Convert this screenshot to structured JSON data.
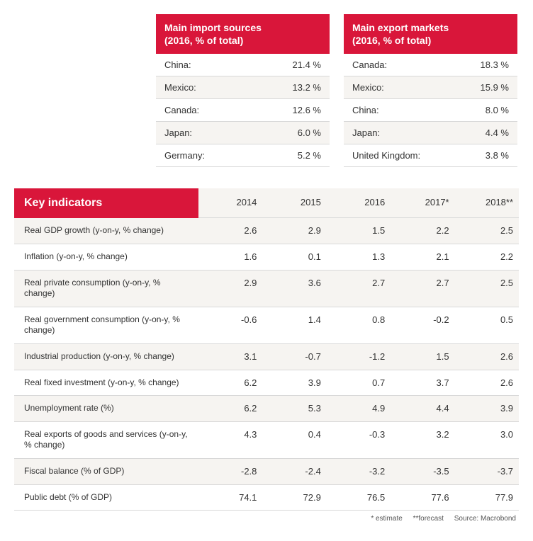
{
  "imports": {
    "title": "Main import sources",
    "subtitle": "(2016, % of total)",
    "rows": [
      {
        "label": "China:",
        "value": "21.4 %"
      },
      {
        "label": "Mexico:",
        "value": "13.2 %"
      },
      {
        "label": "Canada:",
        "value": "12.6 %"
      },
      {
        "label": "Japan:",
        "value": "6.0 %"
      },
      {
        "label": "Germany:",
        "value": "5.2 %"
      }
    ]
  },
  "exports": {
    "title": "Main export markets",
    "subtitle": "(2016, % of total)",
    "rows": [
      {
        "label": "Canada:",
        "value": "18.3 %"
      },
      {
        "label": "Mexico:",
        "value": "15.9 %"
      },
      {
        "label": "China:",
        "value": "8.0 %"
      },
      {
        "label": "Japan:",
        "value": "4.4 %"
      },
      {
        "label": "United Kingdom:",
        "value": "3.8 %"
      }
    ]
  },
  "key_indicators": {
    "title": "Key indicators",
    "years": [
      "2014",
      "2015",
      "2016",
      "2017*",
      "2018**"
    ],
    "rows": [
      {
        "label": "Real GDP growth (y-on-y, % change)",
        "values": [
          "2.6",
          "2.9",
          "1.5",
          "2.2",
          "2.5"
        ]
      },
      {
        "label": "Inflation (y-on-y, % change)",
        "values": [
          "1.6",
          "0.1",
          "1.3",
          "2.1",
          "2.2"
        ]
      },
      {
        "label": "Real private consumption\n(y-on-y, % change)",
        "values": [
          "2.9",
          "3.6",
          "2.7",
          "2.7",
          "2.5"
        ]
      },
      {
        "label": "Real government consumption\n(y-on-y, % change)",
        "values": [
          "-0.6",
          "1.4",
          "0.8",
          "-0.2",
          "0.5"
        ]
      },
      {
        "label": "Industrial production (y-on-y, % change)",
        "values": [
          "3.1",
          "-0.7",
          "-1.2",
          "1.5",
          "2.6"
        ]
      },
      {
        "label": "Real fixed investment (y-on-y, % change)",
        "values": [
          "6.2",
          "3.9",
          "0.7",
          "3.7",
          "2.6"
        ]
      },
      {
        "label": "Unemployment rate (%)",
        "values": [
          "6.2",
          "5.3",
          "4.9",
          "4.4",
          "3.9"
        ]
      },
      {
        "label": "Real exports of goods and services\n(y-on-y, % change)",
        "values": [
          "4.3",
          "0.4",
          "-0.3",
          "3.2",
          "3.0"
        ]
      },
      {
        "label": "Fiscal balance (% of GDP)",
        "values": [
          "-2.8",
          "-2.4",
          "-3.2",
          "-3.5",
          "-3.7"
        ]
      },
      {
        "label": "Public debt (% of GDP)",
        "values": [
          "74.1",
          "72.9",
          "76.5",
          "77.6",
          "77.9"
        ]
      }
    ]
  },
  "footnote": {
    "estimate": "* estimate",
    "forecast": "**forecast",
    "source": "Source: Macrobond"
  },
  "colors": {
    "header_bg": "#d9163a",
    "header_text": "#ffffff",
    "row_alt": "#f6f4f1",
    "row_base": "#ffffff",
    "border": "#d8d8d8",
    "text": "#333333"
  }
}
